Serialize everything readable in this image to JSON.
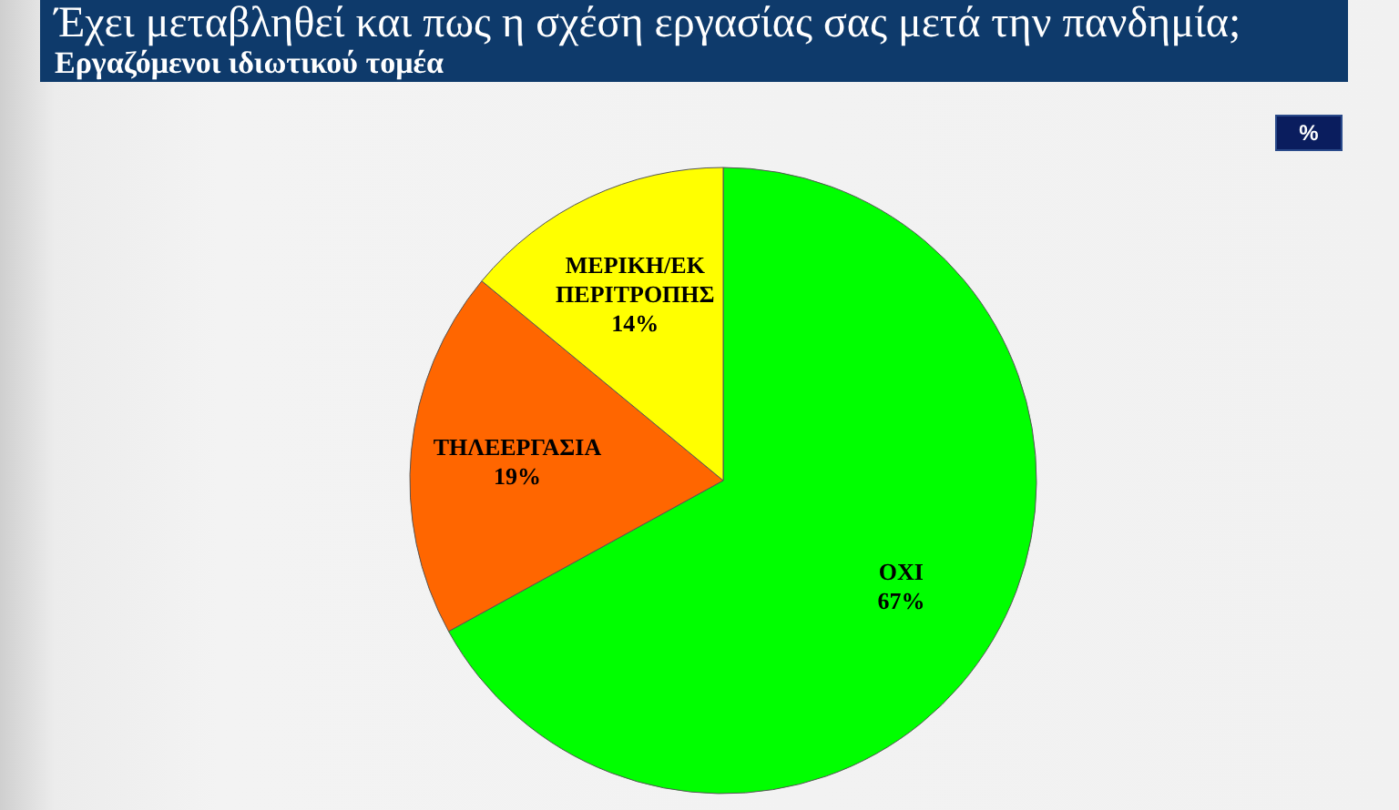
{
  "chart_data": {
    "type": "pie",
    "title": "Έχει μεταβληθεί και πως η σχέση εργασίας σας μετά την πανδημία;",
    "subtitle": "Εργαζόμενοι ιδιωτικού τομέα",
    "categories": [
      "ΟΧΙ",
      "ΤΗΛΕΕΡΓΑΣΙΑ",
      "ΜΕΡΙΚΗ/ΕΚ ΠΕΡΙΤΡΟΠΗΣ"
    ],
    "values": [
      67,
      19,
      14
    ],
    "value_labels": [
      "67%",
      "19%",
      "14%"
    ],
    "colors": [
      "#00ff00",
      "#ff6600",
      "#ffff00"
    ],
    "annotations": [
      "%"
    ]
  }
}
